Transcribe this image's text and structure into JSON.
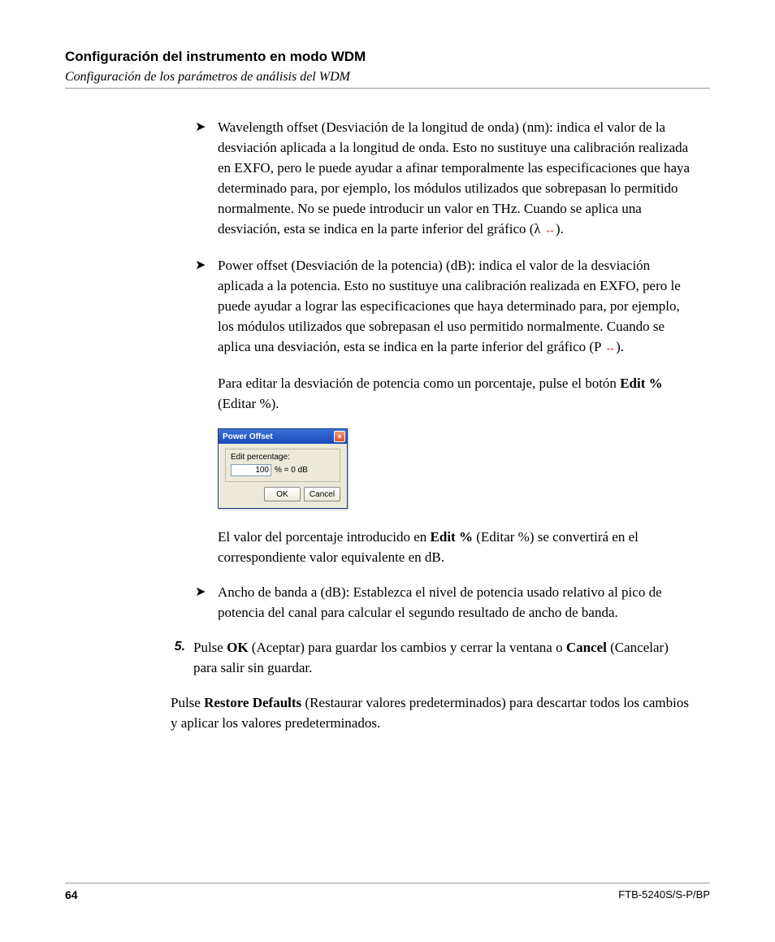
{
  "header": {
    "title": "Configuración del instrumento en modo WDM",
    "subtitle": "Configuración de los parámetros de análisis del WDM"
  },
  "bullets": {
    "b1_a": "Wavelength offset (Desviación de la longitud de onda) (nm): indica el valor de la desviación aplicada a la longitud de onda. Esto no sustituye una calibración realizada en EXFO, pero le puede ayudar a afinar temporalmente las especificaciones que haya determinado para, por ejemplo, los módulos utilizados que sobrepasan lo permitido normalmente. No se puede introducir un valor en THz. Cuando se aplica una desviación, esta se indica en la parte inferior del gráfico (λ ",
    "b1_arrow": "↔",
    "b1_b": ").",
    "b2_a": "Power offset (Desviación de la potencia) (dB): indica el valor de la desviación aplicada a la potencia. Esto no sustituye una calibración realizada en EXFO, pero le puede ayudar a lograr las especificaciones que haya determinado para, por ejemplo, los módulos utilizados que sobrepasan el uso permitido normalmente. Cuando se aplica una desviación, esta se indica en la parte inferior del gráfico (P  ",
    "b2_arrow": "↔",
    "b2_b": ").",
    "p1_a": "Para editar la desviación de potencia como un porcentaje, pulse el botón ",
    "p1_bold": "Edit %",
    "p1_b": " (Editar %).",
    "p2_a": "El valor del porcentaje introducido en ",
    "p2_bold": "Edit %",
    "p2_b": " (Editar %) se convertirá en el correspondiente valor equivalente en dB.",
    "b3": "Ancho de banda a (dB): Establezca el nivel de potencia usado relativo al pico de potencia del canal para calcular el segundo resultado de ancho de banda."
  },
  "numbered": {
    "marker": "5.",
    "t1": "Pulse ",
    "t1_bold": "OK",
    "t2": " (Aceptar) para guardar los cambios y cerrar la ventana o ",
    "t2_bold": "Cancel",
    "t3": " (Cancelar) para salir sin guardar."
  },
  "final": {
    "a": "Pulse ",
    "bold": "Restore Defaults",
    "b": " (Restaurar valores predeterminados) para descartar todos los cambios y aplicar los valores predeterminados."
  },
  "dialog": {
    "title": "Power Offset",
    "label": "Edit percentage:",
    "value": "100",
    "suffix": "% = 0 dB",
    "ok": "OK",
    "cancel": "Cancel",
    "close": "×"
  },
  "footer": {
    "page": "64",
    "model": "FTB-5240S/S-P/BP"
  }
}
